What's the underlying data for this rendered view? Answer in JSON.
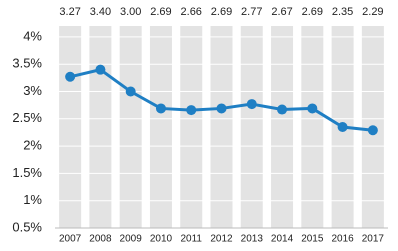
{
  "chart_data": {
    "type": "line",
    "categories": [
      "2007",
      "2008",
      "2009",
      "2010",
      "2011",
      "2012",
      "2013",
      "2014",
      "2015",
      "2016",
      "2017"
    ],
    "values": [
      3.27,
      3.4,
      3.0,
      2.69,
      2.66,
      2.69,
      2.77,
      2.67,
      2.69,
      2.35,
      2.29
    ],
    "value_labels": [
      "3.27",
      "3.40",
      "3.00",
      "2.69",
      "2.66",
      "2.69",
      "2.77",
      "2.67",
      "2.69",
      "2.35",
      "2.29"
    ],
    "color": "#1f7fc4",
    "ylim": [
      0.5,
      4.2
    ],
    "yticks": [
      {
        "value": 0.5,
        "label": "0.5%"
      },
      {
        "value": 1,
        "label": "1%"
      },
      {
        "value": 1.5,
        "label": "1.5%"
      },
      {
        "value": 2,
        "label": "2%"
      },
      {
        "value": 2.5,
        "label": "2.5%"
      },
      {
        "value": 3,
        "label": "3%"
      },
      {
        "value": 3.5,
        "label": "3.5%"
      },
      {
        "value": 4,
        "label": "4%"
      }
    ],
    "grid": true
  }
}
